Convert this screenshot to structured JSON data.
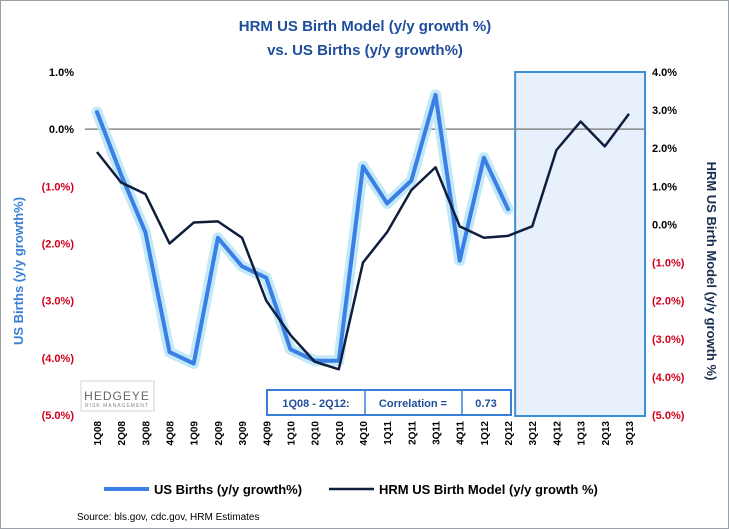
{
  "chart_data": {
    "type": "line",
    "title": "HRM US Birth Model (y/y growth %)",
    "subtitle": "vs. US Births (y/y growth%)",
    "categories": [
      "1Q08",
      "2Q08",
      "3Q08",
      "4Q08",
      "1Q09",
      "2Q09",
      "3Q09",
      "4Q09",
      "1Q10",
      "2Q10",
      "3Q10",
      "4Q10",
      "1Q11",
      "2Q11",
      "3Q11",
      "4Q11",
      "1Q12",
      "2Q12",
      "3Q12",
      "4Q12",
      "1Q13",
      "2Q13",
      "3Q13"
    ],
    "series": [
      {
        "name": "US Births (y/y growth%)",
        "axis": "left",
        "color": "#3a7fe6",
        "values": [
          0.3,
          -0.8,
          -1.8,
          -3.9,
          -4.1,
          -1.9,
          -2.4,
          -2.6,
          -3.85,
          -4.05,
          -4.05,
          -0.65,
          -1.3,
          -0.9,
          0.6,
          -2.3,
          -0.5,
          -1.4,
          null,
          null,
          null,
          null,
          null
        ]
      },
      {
        "name": "HRM US Birth Model (y/y growth %)",
        "axis": "right",
        "color": "#0f1e3d",
        "values": [
          1.9,
          1.1,
          0.8,
          -0.5,
          0.05,
          0.08,
          -0.35,
          -2.0,
          -2.9,
          -3.6,
          -3.8,
          -1.0,
          -0.2,
          0.9,
          1.5,
          -0.05,
          -0.35,
          -0.3,
          -0.05,
          1.95,
          2.7,
          2.05,
          2.9
        ]
      }
    ],
    "y_left": {
      "label": "US Births (y/y growth%)",
      "min": -5.0,
      "max": 1.0,
      "ticks": [
        1.0,
        0.0,
        -1.0,
        -2.0,
        -3.0,
        -4.0,
        -5.0
      ],
      "tick_labels": [
        "1.0%",
        "0.0%",
        "(1.0%)",
        "(2.0%)",
        "(3.0%)",
        "(4.0%)",
        "(5.0%)"
      ]
    },
    "y_right": {
      "label": "HRM US Birth Model (y/y growth %)",
      "min": -5.0,
      "max": 4.0,
      "ticks": [
        4.0,
        3.0,
        2.0,
        1.0,
        0.0,
        -1.0,
        -2.0,
        -3.0,
        -4.0,
        -5.0
      ],
      "tick_labels": [
        "4.0%",
        "3.0%",
        "2.0%",
        "1.0%",
        "0.0%",
        "(1.0%)",
        "(2.0%)",
        "(3.0%)",
        "(4.0%)",
        "(5.0%)"
      ]
    },
    "forecast_region": {
      "from": "3Q12",
      "to": "3Q13"
    },
    "correlation_box": {
      "period": "1Q08 - 2Q12:",
      "label": "Correlation =",
      "value": "0.73"
    },
    "legend_position": "bottom"
  },
  "logo": {
    "name": "HEDGEYE",
    "tagline": "RISK MANAGEMENT"
  },
  "source": "Source: bls.gov,  cdc.gov, HRM Estimates",
  "colors": {
    "title": "#1f4e9c",
    "negative_tick": "#d0021b",
    "positive_tick": "#000000",
    "forecast_fill": "#e8f1fb",
    "forecast_border": "#3b8fd9"
  }
}
